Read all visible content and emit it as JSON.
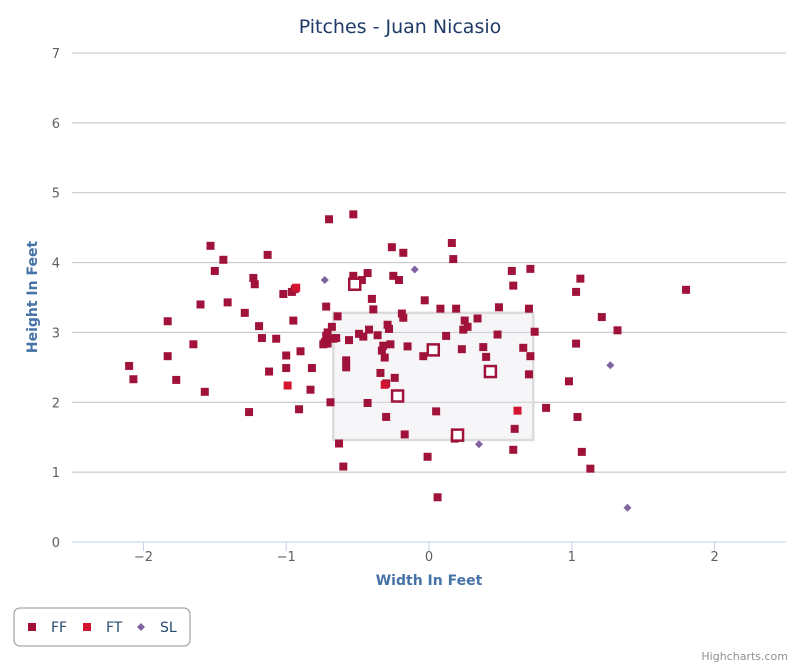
{
  "chart_data": {
    "type": "scatter",
    "title": "Pitches - Juan Nicasio",
    "xlabel": "Width In Feet",
    "ylabel": "Height In Feet",
    "xlim": [
      -2.5,
      2.5
    ],
    "ylim": [
      0,
      7
    ],
    "xticks": [
      -2,
      -1,
      0,
      1,
      2
    ],
    "yticks": [
      0,
      1,
      2,
      3,
      4,
      5,
      6,
      7
    ],
    "xtick_labels": [
      "−2",
      "−1",
      "0",
      "1",
      "2"
    ],
    "ytick_labels": [
      "0",
      "1",
      "2",
      "3",
      "4",
      "5",
      "6",
      "7"
    ],
    "grid": "horizontal",
    "legend_position": "bottom-left",
    "credits": "Highcharts.com",
    "strike_zone": {
      "x": [
        -0.67,
        0.73
      ],
      "y": [
        1.46,
        3.28
      ]
    },
    "series": [
      {
        "name": "FF",
        "color": "#a0123a",
        "marker": "square",
        "points": [
          [
            -2.1,
            2.52
          ],
          [
            -2.07,
            2.33
          ],
          [
            -1.83,
            3.16
          ],
          [
            -1.83,
            2.66
          ],
          [
            -1.77,
            2.32
          ],
          [
            -1.65,
            2.83
          ],
          [
            -1.6,
            3.4
          ],
          [
            -1.57,
            2.15
          ],
          [
            -1.53,
            4.24
          ],
          [
            -1.5,
            3.88
          ],
          [
            -1.44,
            4.04
          ],
          [
            -1.41,
            3.43
          ],
          [
            -1.29,
            3.28
          ],
          [
            -1.26,
            1.86
          ],
          [
            -1.23,
            3.78
          ],
          [
            -1.22,
            3.69
          ],
          [
            -1.19,
            3.09
          ],
          [
            -1.17,
            2.92
          ],
          [
            -1.13,
            4.11
          ],
          [
            -1.12,
            2.44
          ],
          [
            -1.07,
            2.91
          ],
          [
            -1.02,
            3.55
          ],
          [
            -1.0,
            2.67
          ],
          [
            -1.0,
            2.49
          ],
          [
            -0.96,
            3.58
          ],
          [
            -0.95,
            3.17
          ],
          [
            -0.94,
            3.62
          ],
          [
            -0.91,
            1.9
          ],
          [
            -0.9,
            2.73
          ],
          [
            -0.83,
            2.18
          ],
          [
            -0.82,
            2.49
          ],
          [
            -0.74,
            2.83
          ],
          [
            -0.73,
            2.86
          ],
          [
            -0.72,
            2.95
          ],
          [
            -0.72,
            3.37
          ],
          [
            -0.71,
            2.84
          ],
          [
            -0.71,
            3.0
          ],
          [
            -0.7,
            4.62
          ],
          [
            -0.69,
            2.0
          ],
          [
            -0.68,
            3.08
          ],
          [
            -0.67,
            2.91
          ],
          [
            -0.65,
            2.92
          ],
          [
            -0.64,
            3.23
          ],
          [
            -0.63,
            1.41
          ],
          [
            -0.6,
            1.08
          ],
          [
            -0.58,
            2.5
          ],
          [
            -0.58,
            2.6
          ],
          [
            -0.56,
            2.89
          ],
          [
            -0.53,
            4.69
          ],
          [
            -0.53,
            3.81
          ],
          [
            -0.49,
            2.98
          ],
          [
            -0.47,
            3.75
          ],
          [
            -0.46,
            2.94
          ],
          [
            -0.43,
            1.99
          ],
          [
            -0.43,
            3.85
          ],
          [
            -0.42,
            3.04
          ],
          [
            -0.4,
            3.48
          ],
          [
            -0.39,
            3.33
          ],
          [
            -0.36,
            2.96
          ],
          [
            -0.34,
            2.42
          ],
          [
            -0.33,
            2.74
          ],
          [
            -0.32,
            2.81
          ],
          [
            -0.31,
            2.64
          ],
          [
            -0.3,
            1.79
          ],
          [
            -0.3,
            2.27
          ],
          [
            -0.29,
            3.11
          ],
          [
            -0.28,
            3.05
          ],
          [
            -0.27,
            2.83
          ],
          [
            -0.26,
            4.22
          ],
          [
            -0.25,
            3.81
          ],
          [
            -0.24,
            2.35
          ],
          [
            -0.21,
            3.75
          ],
          [
            -0.19,
            3.27
          ],
          [
            -0.18,
            4.14
          ],
          [
            -0.18,
            3.21
          ],
          [
            -0.17,
            1.54
          ],
          [
            -0.15,
            2.8
          ],
          [
            -0.04,
            2.66
          ],
          [
            -0.03,
            3.46
          ],
          [
            -0.01,
            1.22
          ],
          [
            0.05,
            1.87
          ],
          [
            0.06,
            0.64
          ],
          [
            0.08,
            3.34
          ],
          [
            0.12,
            2.95
          ],
          [
            0.16,
            4.28
          ],
          [
            0.17,
            4.05
          ],
          [
            0.18,
            1.48
          ],
          [
            0.19,
            3.34
          ],
          [
            0.23,
            2.76
          ],
          [
            0.24,
            3.04
          ],
          [
            0.25,
            3.17
          ],
          [
            0.27,
            3.08
          ],
          [
            0.34,
            3.2
          ],
          [
            0.38,
            2.79
          ],
          [
            0.4,
            2.65
          ],
          [
            0.48,
            2.97
          ],
          [
            0.49,
            3.36
          ],
          [
            0.58,
            3.88
          ],
          [
            0.59,
            1.32
          ],
          [
            0.59,
            3.67
          ],
          [
            0.6,
            1.62
          ],
          [
            0.66,
            2.78
          ],
          [
            0.7,
            2.4
          ],
          [
            0.7,
            3.34
          ],
          [
            0.71,
            3.91
          ],
          [
            0.71,
            2.66
          ],
          [
            0.74,
            3.01
          ],
          [
            0.82,
            1.92
          ],
          [
            0.98,
            2.3
          ],
          [
            1.03,
            2.84
          ],
          [
            1.03,
            3.58
          ],
          [
            1.04,
            1.79
          ],
          [
            1.06,
            3.77
          ],
          [
            1.07,
            1.29
          ],
          [
            1.13,
            1.05
          ],
          [
            1.21,
            3.22
          ],
          [
            1.32,
            3.03
          ],
          [
            1.8,
            3.61
          ]
        ]
      },
      {
        "name": "FT",
        "color": "#d4142e",
        "marker": "square",
        "points": [
          [
            -0.99,
            2.24
          ],
          [
            -0.93,
            3.64
          ],
          [
            -0.31,
            2.25
          ],
          [
            0.62,
            1.88
          ]
        ]
      },
      {
        "name": "SL",
        "color": "#8064a2",
        "marker": "diamond",
        "points": [
          [
            -0.73,
            3.75
          ],
          [
            -0.1,
            3.9
          ],
          [
            0.35,
            1.4
          ],
          [
            1.27,
            2.53
          ],
          [
            1.39,
            0.49
          ]
        ]
      }
    ],
    "highlighted_points": [
      {
        "x": -0.52,
        "y": 3.69,
        "color": "#a0123a"
      },
      {
        "x": 0.03,
        "y": 2.75,
        "color": "#a0123a"
      },
      {
        "x": -0.22,
        "y": 2.09,
        "color": "#a0123a"
      },
      {
        "x": 0.43,
        "y": 2.44,
        "color": "#a0123a"
      },
      {
        "x": 0.2,
        "y": 1.53,
        "color": "#a0123a"
      }
    ]
  }
}
